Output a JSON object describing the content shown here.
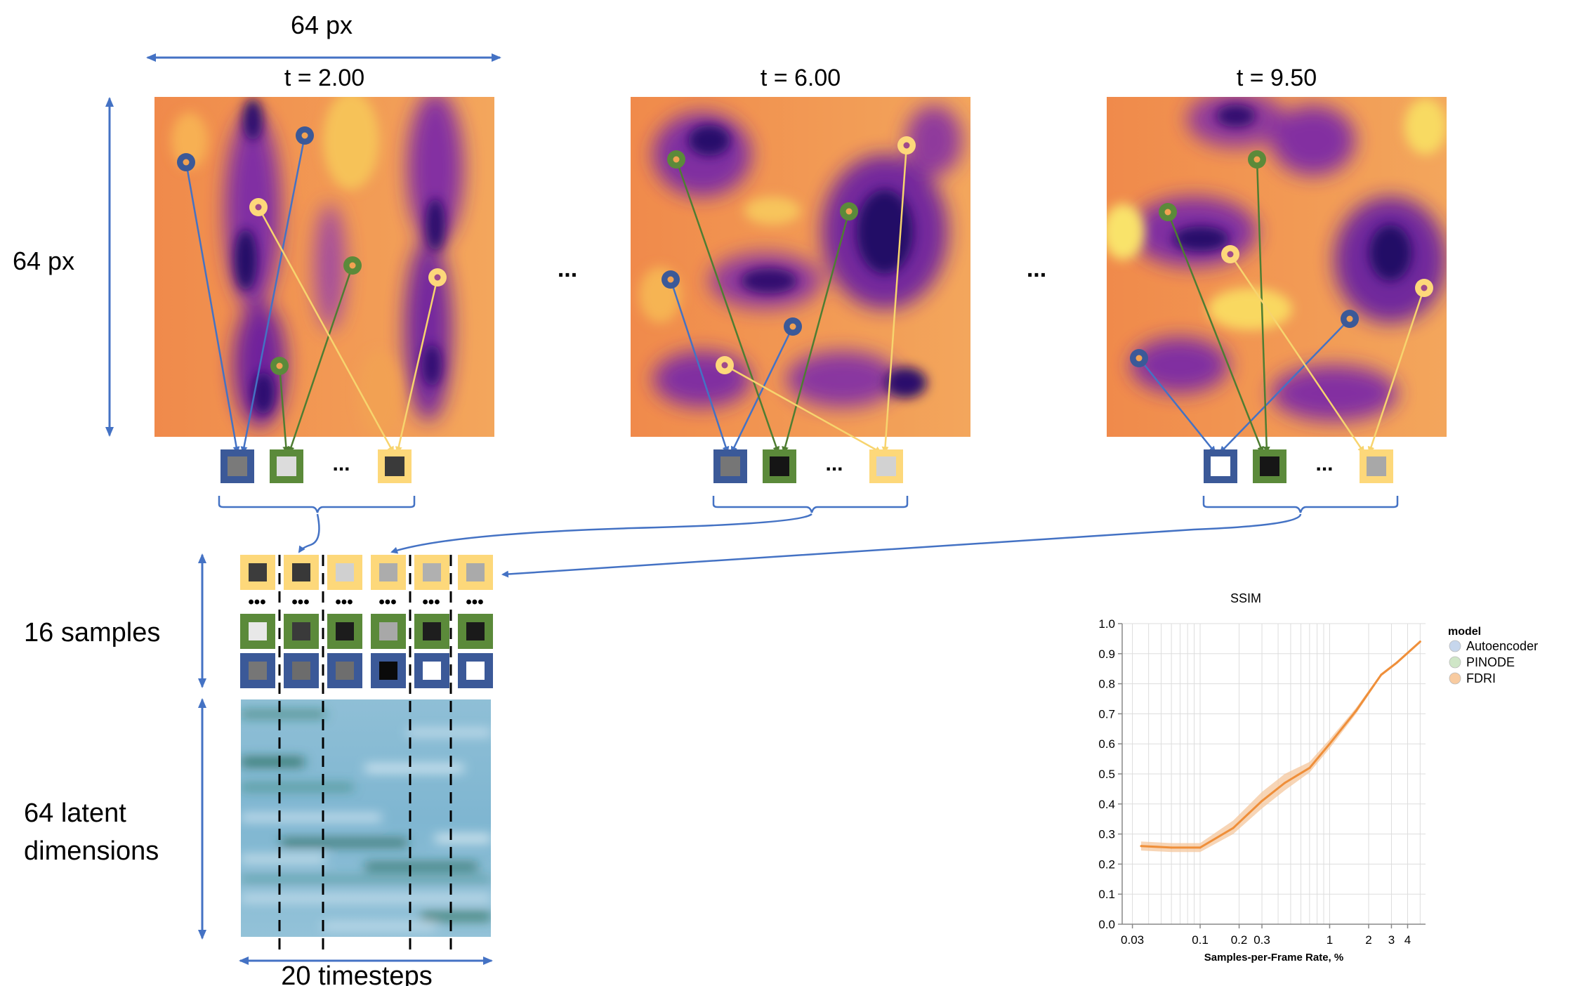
{
  "labels": {
    "width_px": "64 px",
    "height_px": "64 px",
    "samples": "16 samples",
    "latent_line1": "64 latent",
    "latent_line2": "dimensions",
    "timesteps": "20 timesteps",
    "ellipsis": "...",
    "dots": "•••"
  },
  "frames": [
    {
      "title": "t = 2.00",
      "sample_fills": [
        "#7a7a7a",
        "#dcdcdc",
        "#3a3a3a"
      ]
    },
    {
      "title": "t = 6.00",
      "sample_fills": [
        "#767676",
        "#151515",
        "#d2d2d2"
      ]
    },
    {
      "title": "t = 9.50",
      "sample_fills": [
        "#ffffff",
        "#161616",
        "#a8a8a8"
      ]
    }
  ],
  "colors": {
    "blue": "#3b5998",
    "green": "#5b8a3a",
    "yellow": "#fdd87a",
    "arrow_blue": "#4472c4",
    "arrow_green": "#4e7d32",
    "arrow_yellow": "#f7d46e"
  },
  "sample_matrix": {
    "yellow_row": [
      "#3c3c3c",
      "#383838",
      "#d0d0d0",
      "#acacac",
      "#b0b0b0",
      "#aaaaaa"
    ],
    "green_row": [
      "#e8e8e8",
      "#3a3a3a",
      "#1c1c1c",
      "#a8a8a8",
      "#1e1e1e",
      "#1a1a1a"
    ],
    "blue_row": [
      "#767676",
      "#6c6c6c",
      "#6e6e6e",
      "#0a0a0a",
      "#ffffff",
      "#ffffff"
    ]
  },
  "chart_data": {
    "type": "line",
    "title": "SSIM",
    "xlabel": "Samples-per-Frame Rate, %",
    "ylabel": "",
    "x_scale": "log",
    "xlim": [
      0.025,
      5.5
    ],
    "ylim": [
      0,
      1.0
    ],
    "x_ticks": [
      0.03,
      0.1,
      0.2,
      0.3,
      1,
      2,
      3,
      4
    ],
    "x_tick_labels": [
      "0.03",
      "0.1",
      "0.2",
      "0.3",
      "1",
      "2",
      "3",
      "4"
    ],
    "y_ticks": [
      0.0,
      0.1,
      0.2,
      0.3,
      0.4,
      0.5,
      0.6,
      0.7,
      0.8,
      0.9,
      1.0
    ],
    "y_tick_labels": [
      "0.0",
      "0.1",
      "0.2",
      "0.3",
      "0.4",
      "0.5",
      "0.6",
      "0.7",
      "0.8",
      "0.9",
      "1.0"
    ],
    "grid": true,
    "legend": {
      "title": "model",
      "placement": "right",
      "entries": [
        {
          "name": "Autoencoder",
          "color": "#c6d6ec"
        },
        {
          "name": "PINODE",
          "color": "#cfe6c7"
        },
        {
          "name": "FDRI",
          "color": "#f8cba0"
        }
      ]
    },
    "series": [
      {
        "name": "FDRI",
        "color": "#ef8f3a",
        "band_color": "#f4c79d",
        "x": [
          0.035,
          0.06,
          0.1,
          0.18,
          0.3,
          0.45,
          0.7,
          1.0,
          1.6,
          2.5,
          3.3,
          5.0
        ],
        "y": [
          0.26,
          0.255,
          0.255,
          0.32,
          0.41,
          0.47,
          0.52,
          0.6,
          0.71,
          0.83,
          0.87,
          0.94
        ],
        "lower": [
          0.245,
          0.24,
          0.24,
          0.3,
          0.385,
          0.445,
          0.505,
          0.585,
          0.7,
          0.825,
          0.865,
          0.935
        ],
        "upper": [
          0.275,
          0.27,
          0.27,
          0.345,
          0.44,
          0.5,
          0.54,
          0.615,
          0.72,
          0.835,
          0.875,
          0.945
        ]
      }
    ]
  }
}
